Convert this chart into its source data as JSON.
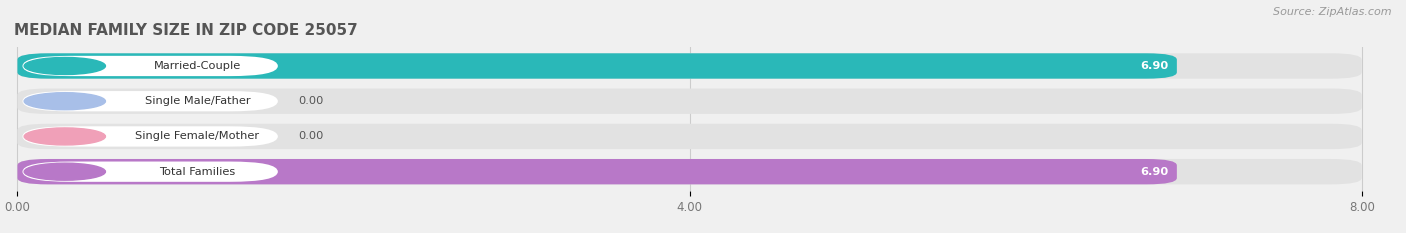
{
  "title": "MEDIAN FAMILY SIZE IN ZIP CODE 25057",
  "source": "Source: ZipAtlas.com",
  "categories": [
    "Married-Couple",
    "Single Male/Father",
    "Single Female/Mother",
    "Total Families"
  ],
  "values": [
    6.9,
    0.0,
    0.0,
    6.9
  ],
  "bar_colors": [
    "#2ab8b8",
    "#a8bfe8",
    "#f0a0b8",
    "#b878c8"
  ],
  "value_labels": [
    "6.90",
    "0.00",
    "0.00",
    "6.90"
  ],
  "value_in_bar": [
    true,
    false,
    false,
    true
  ],
  "xlim": [
    0,
    8.0
  ],
  "xticks": [
    0.0,
    4.0,
    8.0
  ],
  "xticklabels": [
    "0.00",
    "4.00",
    "8.00"
  ],
  "background_color": "#f0f0f0",
  "bar_background_color": "#e2e2e2",
  "title_fontsize": 11,
  "source_fontsize": 8,
  "bar_height": 0.72,
  "bar_gap": 0.28
}
